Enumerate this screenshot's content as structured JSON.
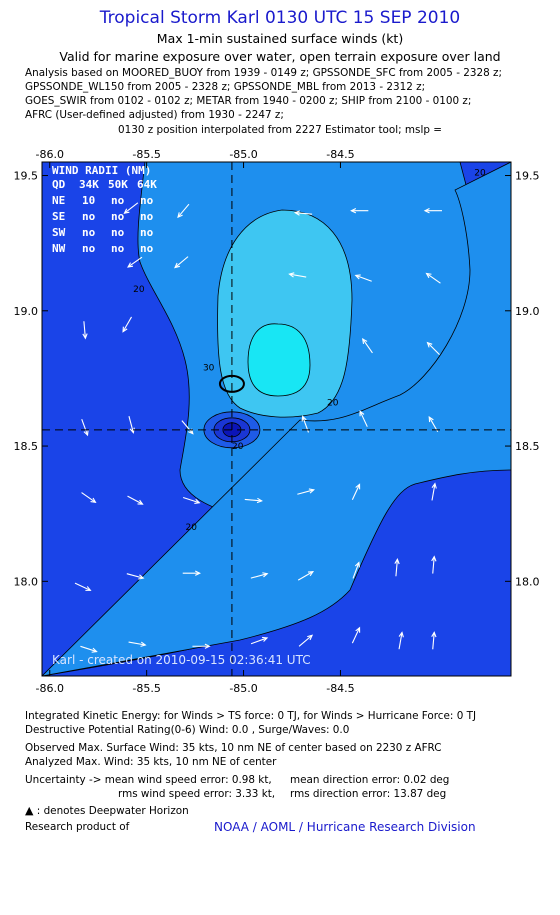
{
  "header": {
    "title": "Tropical Storm Karl 0130 UTC 15 SEP 2010",
    "subtitle": "Max 1-min sustained surface winds (kt)",
    "valid_for": "Valid for marine exposure over water, open terrain exposure over land"
  },
  "sources": [
    "Analysis based on MOORED_BUOY from 1939 - 0149 z; GPSSONDE_SFC from 2005 - 2328 z;",
    "GPSSONDE_WL150 from 2005 - 2328 z; GPSSONDE_MBL from 2013 - 2312 z;",
    "GOES_SWIR from 0102 - 0102 z; METAR from 1940 - 0200 z; SHIP from 2100 - 0100 z;",
    "AFRC (User-defined adjusted) from 1930 - 2247 z;"
  ],
  "position_note": "0130 z position interpolated from 2227 Estimator tool; mslp =",
  "wind_radii": {
    "title": "WIND RADII (NM)",
    "header": [
      "QD",
      "34K",
      "50K",
      "64K"
    ],
    "rows": [
      [
        "NE",
        "10",
        "no",
        "no"
      ],
      [
        "SE",
        "no",
        "no",
        "no"
      ],
      [
        "SW",
        "no",
        "no",
        "no"
      ],
      [
        "NW",
        "no",
        "no",
        "no"
      ]
    ]
  },
  "created_label": "Karl - created on 2010-09-15 02:36:41 UTC",
  "colors": {
    "level_lt20": "#1a44e8",
    "level_20_30": "#1e8fee",
    "level_30_35": "#3ec6f2",
    "level_gt35": "#18e6f4",
    "center_outer": "#1e5be8",
    "center_mid": "#1a36d4",
    "center_inner": "#0b14b8",
    "title_blue": "#1a1acc"
  },
  "chart_data": {
    "type": "heatmap",
    "title": "Tropical Storm Karl 0130 UTC 15 SEP 2010",
    "subtitle": "Max 1-min sustained surface winds (kt)",
    "xlabel": "",
    "ylabel": "",
    "xlim": [
      -86.04,
      -83.62
    ],
    "ylim": [
      17.65,
      19.55
    ],
    "x_ticks": [
      -86.0,
      -85.5,
      -85.0,
      -84.5
    ],
    "x_tick_labels": [
      "-86.0",
      "-85.5",
      "-85.0",
      "-84.5"
    ],
    "y_ticks": [
      18.0,
      18.5,
      19.0,
      19.5
    ],
    "y_tick_labels": [
      "18.0",
      "18.5",
      "19.0",
      "19.5"
    ],
    "storm_center": {
      "lon": -85.06,
      "lat": 18.56
    },
    "max_wind_location": {
      "lon": -85.06,
      "lat": 18.73
    },
    "contour_labels": [
      {
        "text": "20",
        "lon": -83.78,
        "lat": 19.5
      },
      {
        "text": "20",
        "lon": -85.54,
        "lat": 19.07
      },
      {
        "text": "30",
        "lon": -85.18,
        "lat": 18.78
      },
      {
        "text": "20",
        "lon": -84.54,
        "lat": 18.65
      },
      {
        "text": "20",
        "lon": -85.03,
        "lat": 18.49
      },
      {
        "text": "20",
        "lon": -85.27,
        "lat": 18.19
      }
    ],
    "wind_vectors": [
      {
        "lon": -85.58,
        "lat": 19.38,
        "dir": 232
      },
      {
        "lon": -85.31,
        "lat": 19.37,
        "dir": 220
      },
      {
        "lon": -84.69,
        "lat": 19.36,
        "dir": 275
      },
      {
        "lon": -84.4,
        "lat": 19.37,
        "dir": 270
      },
      {
        "lon": -84.02,
        "lat": 19.37,
        "dir": 270
      },
      {
        "lon": -85.56,
        "lat": 19.18,
        "dir": 235
      },
      {
        "lon": -85.32,
        "lat": 19.18,
        "dir": 230
      },
      {
        "lon": -84.72,
        "lat": 19.13,
        "dir": 280
      },
      {
        "lon": -84.38,
        "lat": 19.12,
        "dir": 290
      },
      {
        "lon": -84.02,
        "lat": 19.12,
        "dir": 305
      },
      {
        "lon": -85.82,
        "lat": 18.93,
        "dir": 175
      },
      {
        "lon": -85.6,
        "lat": 18.95,
        "dir": 210
      },
      {
        "lon": -84.36,
        "lat": 18.87,
        "dir": 325
      },
      {
        "lon": -84.02,
        "lat": 18.86,
        "dir": 315
      },
      {
        "lon": -84.38,
        "lat": 18.6,
        "dir": 335
      },
      {
        "lon": -84.02,
        "lat": 18.58,
        "dir": 330
      },
      {
        "lon": -84.68,
        "lat": 18.58,
        "dir": 340
      },
      {
        "lon": -85.82,
        "lat": 18.57,
        "dir": 160
      },
      {
        "lon": -85.58,
        "lat": 18.58,
        "dir": 165
      },
      {
        "lon": -85.29,
        "lat": 18.57,
        "dir": 140
      },
      {
        "lon": -85.8,
        "lat": 18.31,
        "dir": 125
      },
      {
        "lon": -85.56,
        "lat": 18.3,
        "dir": 118
      },
      {
        "lon": -85.27,
        "lat": 18.3,
        "dir": 108
      },
      {
        "lon": -84.95,
        "lat": 18.3,
        "dir": 95
      },
      {
        "lon": -84.68,
        "lat": 18.33,
        "dir": 75
      },
      {
        "lon": -84.42,
        "lat": 18.33,
        "dir": 25
      },
      {
        "lon": -84.02,
        "lat": 18.33,
        "dir": 10
      },
      {
        "lon": -85.83,
        "lat": 17.98,
        "dir": 115
      },
      {
        "lon": -85.56,
        "lat": 18.02,
        "dir": 105
      },
      {
        "lon": -85.27,
        "lat": 18.03,
        "dir": 90
      },
      {
        "lon": -84.92,
        "lat": 18.02,
        "dir": 75
      },
      {
        "lon": -84.68,
        "lat": 18.02,
        "dir": 60
      },
      {
        "lon": -84.42,
        "lat": 18.04,
        "dir": 20
      },
      {
        "lon": -84.21,
        "lat": 18.05,
        "dir": 5
      },
      {
        "lon": -84.02,
        "lat": 18.06,
        "dir": 5
      },
      {
        "lon": -85.8,
        "lat": 17.75,
        "dir": 108
      },
      {
        "lon": -85.55,
        "lat": 17.77,
        "dir": 100
      },
      {
        "lon": -85.22,
        "lat": 17.76,
        "dir": 90
      },
      {
        "lon": -84.92,
        "lat": 17.78,
        "dir": 70
      },
      {
        "lon": -84.68,
        "lat": 17.78,
        "dir": 50
      },
      {
        "lon": -84.42,
        "lat": 17.8,
        "dir": 25
      },
      {
        "lon": -84.19,
        "lat": 17.78,
        "dir": 10
      },
      {
        "lon": -84.02,
        "lat": 17.78,
        "dir": 5
      }
    ]
  },
  "footer": {
    "ike": "Integrated Kinetic Energy:  for Winds > TS force: 0 TJ,  for Winds > Hurricane Force: 0 TJ",
    "dpr": "Destructive Potential Rating(0-6)   Wind: 0.0 , Surge/Waves: 0.0",
    "observed": "Observed Max. Surface Wind: 35 kts, 10 nm NE of center based on 2230 z AFRC",
    "analyzed": "Analyzed Max. Wind: 35 kts, 10 nm NE of center",
    "uncertainty_1a": "Uncertainty -> mean wind speed error: 0.98 kt,",
    "uncertainty_1b": "mean direction error: 0.02 deg",
    "uncertainty_2a": "rms wind speed error: 3.33 kt,",
    "uncertainty_2b": "rms direction error: 13.87 deg",
    "deepwater_symbol": "▲",
    "deepwater": ": denotes Deepwater Horizon",
    "research": "Research product of",
    "credit": "NOAA / AOML / Hurricane Research Division"
  }
}
